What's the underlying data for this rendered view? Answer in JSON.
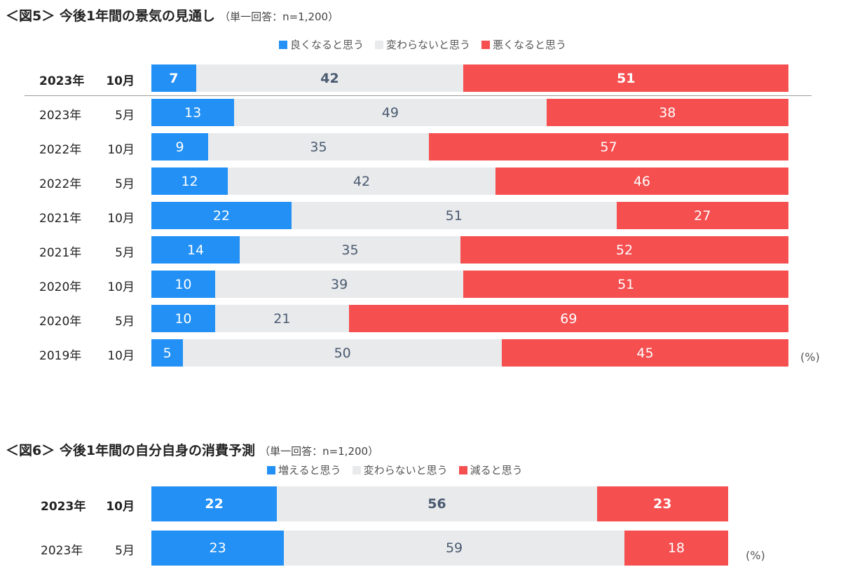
{
  "colors": {
    "positive": "#2290f5",
    "neutral": "#e8eaec",
    "negative": "#f54f50",
    "neutral_text": "#4a5a70"
  },
  "chart_data": [
    {
      "type": "bar",
      "orientation": "horizontal-stacked-100",
      "title": "＜図5＞ 今後1年間の景気の見通し",
      "subtitle": "（単一回答：n=1,200）",
      "unit": "(%)",
      "legend": [
        "良くなると思う",
        "変わらないと思う",
        "悪くなると思う"
      ],
      "legend_position": "top-right",
      "categories": [
        [
          "2023年",
          "10月"
        ],
        [
          "2023年",
          "5月"
        ],
        [
          "2022年",
          "10月"
        ],
        [
          "2022年",
          "5月"
        ],
        [
          "2021年",
          "10月"
        ],
        [
          "2021年",
          "5月"
        ],
        [
          "2020年",
          "10月"
        ],
        [
          "2020年",
          "5月"
        ],
        [
          "2019年",
          "10月"
        ]
      ],
      "series": [
        {
          "name": "良くなると思う",
          "values": [
            7,
            13,
            9,
            12,
            22,
            14,
            10,
            10,
            5
          ]
        },
        {
          "name": "変わらないと思う",
          "values": [
            42,
            49,
            35,
            42,
            51,
            35,
            39,
            21,
            50
          ]
        },
        {
          "name": "悪くなると思う",
          "values": [
            51,
            38,
            57,
            46,
            27,
            52,
            51,
            69,
            45
          ]
        }
      ]
    },
    {
      "type": "bar",
      "orientation": "horizontal-stacked-100",
      "title": "＜図6＞ 今後1年間の自分自身の消費予測",
      "subtitle": "（単一回答：n=1,200）",
      "unit": "(%)",
      "legend": [
        "増えると思う",
        "変わらないと思う",
        "減ると思う"
      ],
      "legend_position": "top-right",
      "categories": [
        [
          "2023年",
          "10月"
        ],
        [
          "2023年",
          "5月"
        ]
      ],
      "series": [
        {
          "name": "増えると思う",
          "values": [
            22,
            23
          ]
        },
        {
          "name": "変わらないと思う",
          "values": [
            56,
            59
          ]
        },
        {
          "name": "減ると思う",
          "values": [
            23,
            18
          ]
        }
      ]
    }
  ]
}
